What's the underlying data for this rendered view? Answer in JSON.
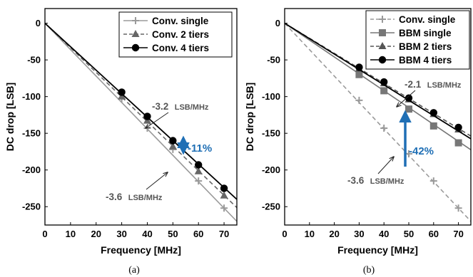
{
  "chart_data": [
    {
      "type": "line",
      "caption": "(a)",
      "xlabel": "Frequency [MHz]",
      "ylabel": "DC drop [LSB]",
      "xlim": [
        0,
        75
      ],
      "ylim": [
        -275,
        20
      ],
      "xticks": [
        0,
        10,
        20,
        30,
        40,
        50,
        60,
        70
      ],
      "yticks": [
        0,
        -50,
        -100,
        -150,
        -200,
        -250
      ],
      "grid": false,
      "legend_position": "top-right",
      "series": [
        {
          "name": "Conv. single",
          "marker": "plus",
          "line": "solid",
          "color": "#9a9a9a",
          "x": [
            30,
            40,
            50,
            60,
            70
          ],
          "y": [
            -103,
            -143,
            -172,
            -215,
            -252
          ],
          "fit_slope": -3.6
        },
        {
          "name": "Conv. 2 tiers",
          "marker": "triangle",
          "line": "dashed",
          "color": "#666666",
          "x": [
            30,
            40,
            50,
            60,
            70
          ],
          "y": [
            -100,
            -133,
            -168,
            -202,
            -235
          ],
          "fit_slope": -3.35
        },
        {
          "name": "Conv. 4 tiers",
          "marker": "circle",
          "line": "solid",
          "color": "#000000",
          "x": [
            30,
            40,
            50,
            60,
            70
          ],
          "y": [
            -94,
            -127,
            -160,
            -193,
            -225
          ],
          "fit_slope": -3.2
        }
      ],
      "annotations": [
        {
          "text_value": "-3.2",
          "text_unit": "LSB/MHz"
        },
        {
          "text_value": "-3.6",
          "text_unit": "LSB/MHz"
        },
        {
          "text": "-11%",
          "color": "#1f6fb5"
        }
      ]
    },
    {
      "type": "line",
      "caption": "(b)",
      "xlabel": "Frequency [MHz]",
      "ylabel": "DC drop [LSB]",
      "xlim": [
        0,
        75
      ],
      "ylim": [
        -275,
        20
      ],
      "xticks": [
        0,
        10,
        20,
        30,
        40,
        50,
        60,
        70
      ],
      "yticks": [
        0,
        -50,
        -100,
        -150,
        -200,
        -250
      ],
      "grid": false,
      "legend_position": "top-right",
      "series": [
        {
          "name": "Conv. single",
          "marker": "plus",
          "line": "dashed",
          "color": "#9a9a9a",
          "x": [
            30,
            40,
            50,
            60,
            70
          ],
          "y": [
            -105,
            -143,
            -178,
            -215,
            -252
          ],
          "fit_slope": -3.6
        },
        {
          "name": "BBM single",
          "marker": "square",
          "line": "solid",
          "color": "#777777",
          "x": [
            30,
            40,
            50,
            60,
            70
          ],
          "y": [
            -70,
            -92,
            -117,
            -140,
            -163
          ],
          "fit_slope": -2.3
        },
        {
          "name": "BBM 2 tiers",
          "marker": "triangle",
          "line": "dashed",
          "color": "#555555",
          "x": [
            30,
            40,
            50,
            60,
            70
          ],
          "y": [
            -62,
            -82,
            -104,
            -124,
            -145
          ],
          "fit_slope": -2.05
        },
        {
          "name": "BBM 4 tiers",
          "marker": "circle",
          "line": "solid",
          "color": "#000000",
          "x": [
            30,
            40,
            50,
            60,
            70
          ],
          "y": [
            -60,
            -80,
            -102,
            -122,
            -142
          ],
          "fit_slope": -2.1
        }
      ],
      "annotations": [
        {
          "text_value": "-2.1",
          "text_unit": "LSB/MHz"
        },
        {
          "text_value": "-3.6",
          "text_unit": "LSB/MHz"
        },
        {
          "text": "-42%",
          "color": "#1f6fb5"
        }
      ]
    }
  ]
}
